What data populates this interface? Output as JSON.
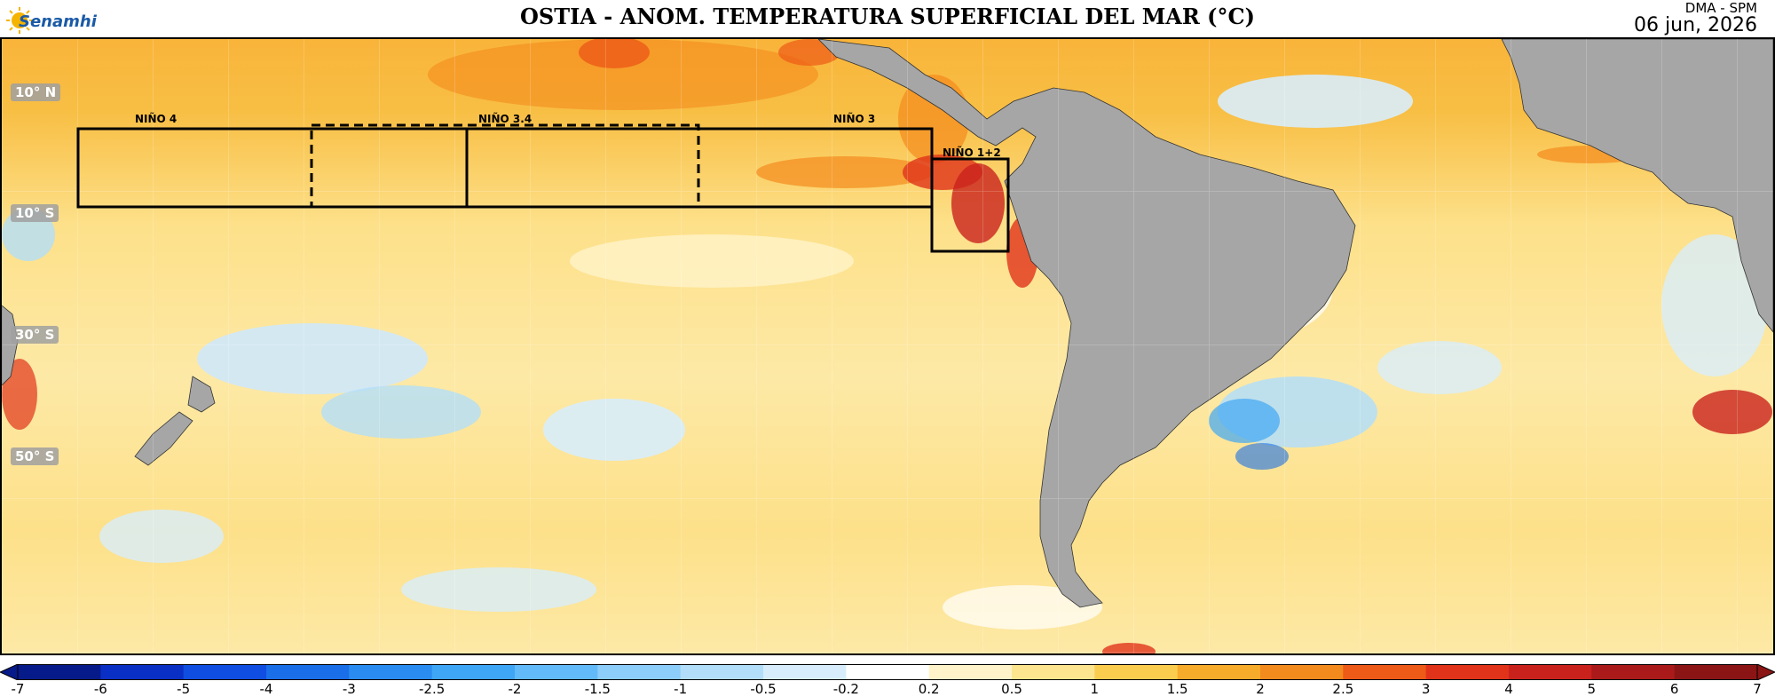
{
  "header": {
    "logo_text": "Senamhi",
    "title": "OSTIA - ANOM. TEMPERATURA SUPERFICIAL DEL MAR (°C)",
    "credit": "DMA - SPM",
    "date": "06 jun, 2026"
  },
  "map": {
    "lat_labels": [
      "10° N",
      "10° S",
      "30° S",
      "50° S"
    ],
    "regions": [
      {
        "name": "NIÑO 4"
      },
      {
        "name": "NIÑO 3.4"
      },
      {
        "name": "NIÑO 3"
      },
      {
        "name": "NIÑO 1+2"
      }
    ],
    "colors": {
      "land": "#a6a6a6",
      "ocean_warm": "#fde089",
      "ocean_hot": "#f5a623",
      "ocean_very_hot": "#e8441a",
      "ocean_cool": "#cfe8fb"
    }
  },
  "colorbar": {
    "ticks": [
      "-7",
      "-6",
      "-5",
      "-4",
      "-3",
      "-2.5",
      "-2",
      "-1.5",
      "-1",
      "-0.5",
      "-0.2",
      "0.2",
      "0.5",
      "1",
      "1.5",
      "2",
      "2.5",
      "3",
      "4",
      "5",
      "6",
      "7"
    ],
    "colors": [
      "#071a8a",
      "#0a2fc4",
      "#0f4ee0",
      "#1a6fe8",
      "#2a8cf0",
      "#3ea6f5",
      "#62baf8",
      "#8ccdfa",
      "#b3def9",
      "#d8edfb",
      "#ffffff",
      "#fff4c9",
      "#fde48e",
      "#fbcd4f",
      "#f7ab2a",
      "#f38a1d",
      "#ee5a17",
      "#e0331a",
      "#c9221d",
      "#aa1a1a",
      "#8b1515"
    ]
  }
}
